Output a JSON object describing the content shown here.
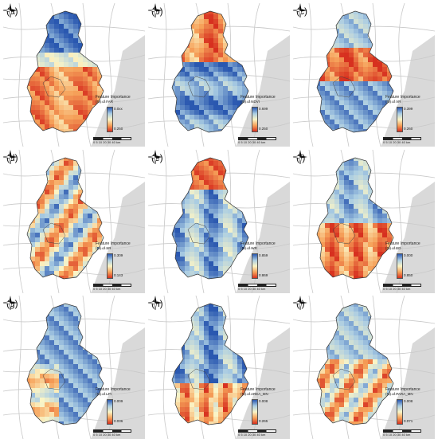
{
  "legend": {
    "title": "Feature Importance",
    "unit_suffix": "km",
    "scale_ticks": "0 5 10  20  30  40"
  },
  "palette": {
    "high": "#2a58b0",
    "mid_high": "#a9cce3",
    "mid": "#fbf5c6",
    "mid_low": "#f6a25a",
    "low": "#d7301f",
    "background": "#d9d9d9",
    "roads": "#c8c8c8"
  },
  "panels": [
    {
      "label": "(a)",
      "var": "(FI) of FAR",
      "max": "0.0xx",
      "min": "0.250"
    },
    {
      "label": "(b)",
      "var": "(FI) of NDVI",
      "max": "0.699",
      "min": "0.250"
    },
    {
      "label": "(c)",
      "var": "(FI) of VR",
      "max": "0.399",
      "min": "0.260"
    },
    {
      "label": "(d)",
      "var": "(FI) of SR",
      "max": "0.309",
      "min": "0.143"
    },
    {
      "label": "(e)",
      "var": "(FI) of WR",
      "max": "0.859",
      "min": "0.869"
    },
    {
      "label": "(f)",
      "var": "(FI) of ED",
      "max": "0.000",
      "min": "0.850"
    },
    {
      "label": "(g)",
      "var": "(FI) of LPI",
      "max": "0.009",
      "min": "0.036"
    },
    {
      "label": "(h)",
      "var": "(FI) of AREA_MN",
      "max": "0.008",
      "min": "0.265"
    },
    {
      "label": "(i)",
      "var": "(FI) of PARA_MN",
      "max": "0.008",
      "min": "0.071"
    }
  ]
}
